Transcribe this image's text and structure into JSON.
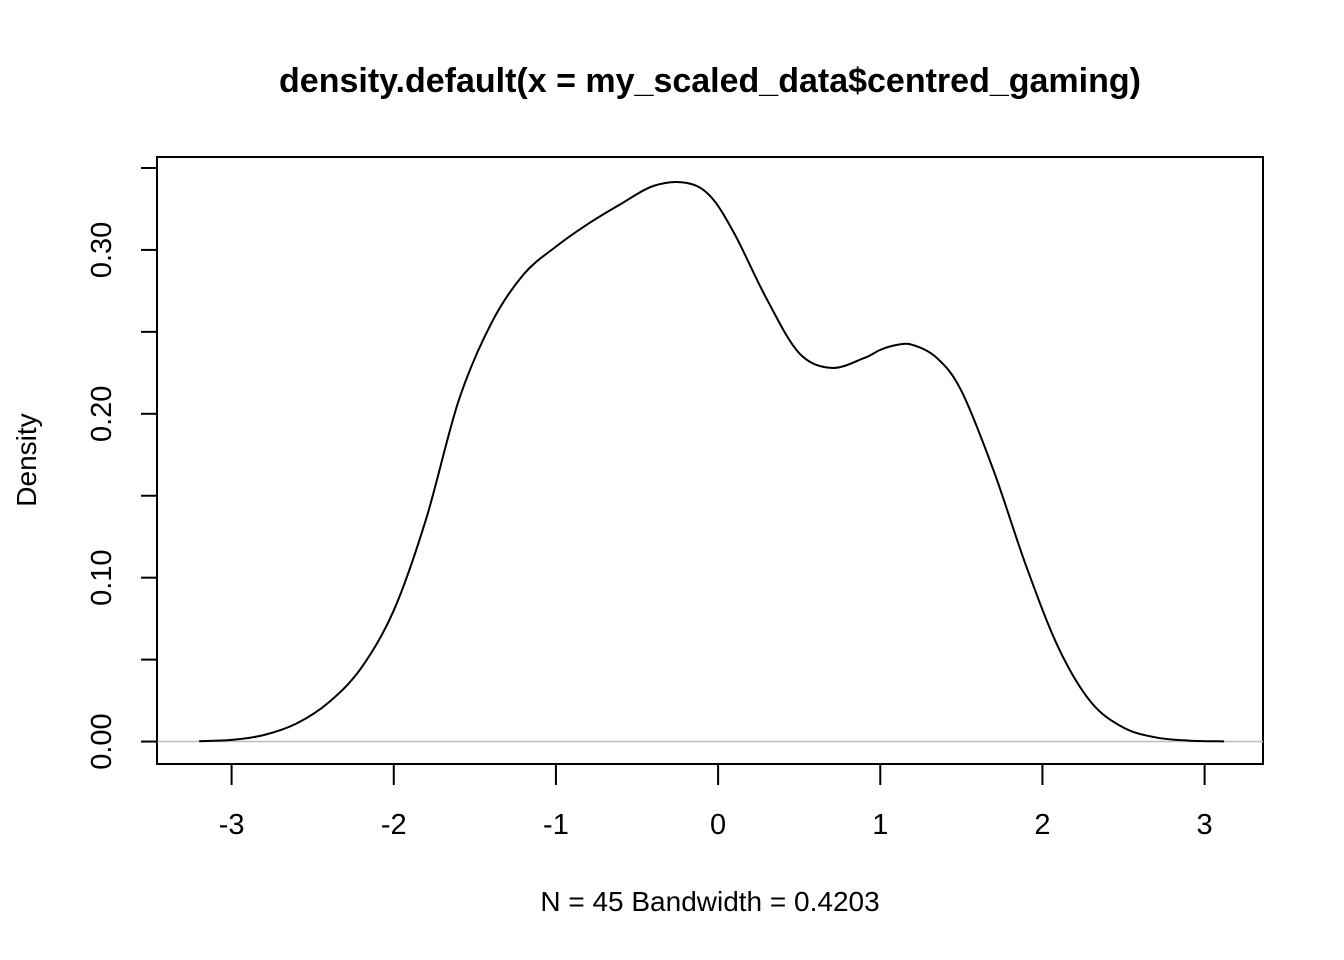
{
  "chart_data": {
    "type": "line",
    "title": "density.default(x = my_scaled_data$centred_gaming)",
    "xlabel": "N = 45   Bandwidth = 0.4203",
    "ylabel": "Density",
    "xlim": [
      -3.46,
      3.36
    ],
    "ylim": [
      -0.0137,
      0.3567
    ],
    "x_ticks": [
      -3,
      -2,
      -1,
      0,
      1,
      2,
      3
    ],
    "x_tick_labels": [
      "-3",
      "-2",
      "-1",
      "0",
      "1",
      "2",
      "3"
    ],
    "y_ticks": [
      0.0,
      0.05,
      0.1,
      0.15,
      0.2,
      0.25,
      0.3,
      0.35
    ],
    "y_tick_labels": [
      "0.00",
      "",
      "0.10",
      "",
      "0.20",
      "",
      "0.30",
      ""
    ],
    "baseline": 0,
    "grid": false,
    "legend": "none",
    "colors": {
      "line": "#000000",
      "baseline": "#bebebe",
      "frame": "#000000"
    },
    "series": [
      {
        "x": [
          -3.2,
          -3.0,
          -2.8,
          -2.6,
          -2.4,
          -2.2,
          -2.0,
          -1.8,
          -1.6,
          -1.4,
          -1.2,
          -1.0,
          -0.8,
          -0.6,
          -0.4,
          -0.2,
          -0.05,
          0.1,
          0.3,
          0.5,
          0.7,
          0.9,
          1.0,
          1.1,
          1.2,
          1.35,
          1.5,
          1.7,
          1.9,
          2.1,
          2.3,
          2.5,
          2.7,
          2.9,
          3.12
        ],
        "y": [
          0.0002,
          0.001,
          0.004,
          0.011,
          0.024,
          0.045,
          0.08,
          0.136,
          0.208,
          0.255,
          0.285,
          0.302,
          0.316,
          0.328,
          0.339,
          0.341,
          0.333,
          0.31,
          0.27,
          0.237,
          0.228,
          0.234,
          0.239,
          0.242,
          0.242,
          0.234,
          0.214,
          0.165,
          0.107,
          0.057,
          0.024,
          0.0085,
          0.0025,
          0.0006,
          0.0001
        ]
      }
    ]
  }
}
